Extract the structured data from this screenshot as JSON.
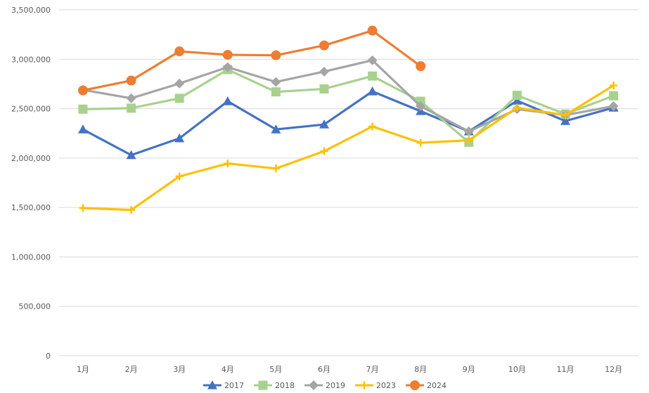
{
  "chart_data": {
    "type": "line",
    "title": "",
    "xlabel": "",
    "ylabel": "",
    "categories": [
      "1月",
      "2月",
      "3月",
      "4月",
      "5月",
      "6月",
      "7月",
      "8月",
      "9月",
      "10月",
      "11月",
      "12月"
    ],
    "ylim": [
      0,
      3500000
    ],
    "yticks": [
      0,
      500000,
      1000000,
      1500000,
      2000000,
      2500000,
      3000000,
      3500000
    ],
    "ytick_labels": [
      "0",
      "500,000",
      "1,000,000",
      "1,500,000",
      "2,000,000",
      "2,500,000",
      "3,000,000",
      "3,500,000"
    ],
    "grid": true,
    "legend_position": "bottom",
    "series": [
      {
        "name": "2017",
        "color": "#4472C4",
        "marker": "triangle",
        "values": [
          2290000,
          2030000,
          2200000,
          2575000,
          2290000,
          2340000,
          2675000,
          2475000,
          2270000,
          2580000,
          2375000,
          2510000
        ]
      },
      {
        "name": "2018",
        "color": "#A9D18E",
        "marker": "square",
        "values": [
          2495000,
          2505000,
          2605000,
          2895000,
          2670000,
          2700000,
          2830000,
          2575000,
          2160000,
          2635000,
          2445000,
          2630000
        ]
      },
      {
        "name": "2019",
        "color": "#A5A5A5",
        "marker": "diamond",
        "values": [
          2690000,
          2605000,
          2755000,
          2920000,
          2770000,
          2875000,
          2990000,
          2525000,
          2270000,
          2495000,
          2435000,
          2525000
        ]
      },
      {
        "name": "2023",
        "color": "#FFC000",
        "marker": "plus",
        "values": [
          1495000,
          1475000,
          1815000,
          1945000,
          1895000,
          2070000,
          2320000,
          2155000,
          2180000,
          2510000,
          2435000,
          2735000
        ]
      },
      {
        "name": "2024",
        "color": "#ED7D31",
        "marker": "circle",
        "values": [
          2685000,
          2785000,
          3080000,
          3045000,
          3040000,
          3140000,
          3290000,
          2930000,
          null,
          null,
          null,
          null
        ]
      }
    ]
  }
}
